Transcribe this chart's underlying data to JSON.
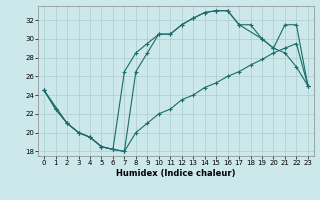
{
  "xlabel": "Humidex (Indice chaleur)",
  "bg_color": "#cce8ea",
  "grid_color": "#aacccc",
  "line_color": "#1a6b6b",
  "xlim": [
    -0.5,
    23.5
  ],
  "ylim": [
    17.5,
    33.5
  ],
  "xticks": [
    0,
    1,
    2,
    3,
    4,
    5,
    6,
    7,
    8,
    9,
    10,
    11,
    12,
    13,
    14,
    15,
    16,
    17,
    18,
    19,
    20,
    21,
    22,
    23
  ],
  "yticks": [
    18,
    20,
    22,
    24,
    26,
    28,
    30,
    32
  ],
  "line1_x": [
    0,
    1,
    2,
    3,
    4,
    5,
    6,
    7,
    8,
    9,
    10,
    11,
    12,
    13,
    14,
    15,
    16,
    17,
    19,
    20,
    21,
    22,
    23
  ],
  "line1_y": [
    24.5,
    22.5,
    21.0,
    20.0,
    19.5,
    18.5,
    18.2,
    26.5,
    28.5,
    29.5,
    30.5,
    30.5,
    31.5,
    32.2,
    32.8,
    33.0,
    33.0,
    31.5,
    30.0,
    29.0,
    31.5,
    31.5,
    25.0
  ],
  "line2_x": [
    0,
    1,
    2,
    3,
    4,
    5,
    6,
    7,
    8,
    9,
    10,
    11,
    12,
    13,
    14,
    15,
    16,
    17,
    18,
    19,
    20,
    21,
    22,
    23
  ],
  "line2_y": [
    24.5,
    22.5,
    21.0,
    20.0,
    19.5,
    18.5,
    18.2,
    18.0,
    20.0,
    21.0,
    22.0,
    22.5,
    23.5,
    24.0,
    24.8,
    25.3,
    26.0,
    26.5,
    27.2,
    27.8,
    28.5,
    29.0,
    29.5,
    25.0
  ],
  "line3_x": [
    0,
    2,
    3,
    4,
    5,
    6,
    7,
    8,
    9,
    10,
    11,
    12,
    13,
    14,
    15,
    16,
    17,
    18,
    19,
    20,
    21,
    22,
    23
  ],
  "line3_y": [
    24.5,
    21.0,
    20.0,
    19.5,
    18.5,
    18.2,
    18.0,
    26.5,
    28.5,
    30.5,
    30.5,
    31.5,
    32.2,
    32.8,
    33.0,
    33.0,
    31.5,
    31.5,
    30.0,
    29.0,
    28.5,
    27.0,
    25.0
  ]
}
